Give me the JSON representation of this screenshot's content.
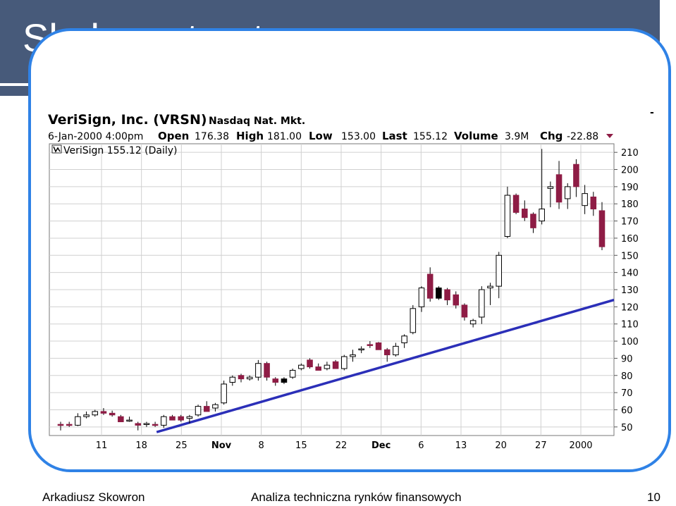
{
  "slide": {
    "title": "Skala arytmetyczna",
    "footer_author": "Arkadiusz Skowron",
    "footer_course": "Analiza techniczna rynków finansowych",
    "page_number": "10"
  },
  "ticker_header": {
    "company": "VeriSign, Inc. (VRSN)",
    "market": "Nasdaq Nat. Mkt.",
    "datetime": "6-Jan-2000 4:00pm",
    "open_label": "Open",
    "open_value": "176.38",
    "high_label": "High",
    "high_value": "181.00",
    "low_label": "Low",
    "low_value": "153.00",
    "last_label": "Last",
    "last_value": "155.12",
    "volume_label": "Volume",
    "volume_value": "3.9M",
    "chg_label": "Chg",
    "chg_value": "-22.88",
    "legend": "VeriSign 155.12 (Daily)",
    "side_mark": "-"
  },
  "colors": {
    "title_bar": "#475a7a",
    "frame": "#2f82e6",
    "down_candle": "#8e1c45",
    "up_candle": "#ffffff",
    "trendline": "#2b2fb8",
    "grid": "#d0d0d0"
  },
  "chart_data": {
    "type": "candlestick",
    "y_scale": "linear",
    "ylim": [
      45,
      215
    ],
    "y_ticks": [
      210,
      200,
      190,
      180,
      170,
      160,
      150,
      140,
      130,
      120,
      110,
      100,
      90,
      80,
      70,
      60,
      50
    ],
    "x_tick_labels": [
      "11",
      "18",
      "25",
      "Nov",
      "8",
      "15",
      "22",
      "Dec",
      "6",
      "13",
      "20",
      "27",
      "2000"
    ],
    "grid": true,
    "candles": [
      {
        "o": 51.5,
        "h": 53,
        "l": 48,
        "c": 51.5,
        "dir": "down"
      },
      {
        "o": 51.5,
        "h": 53,
        "l": 50,
        "c": 51,
        "dir": "down"
      },
      {
        "o": 51,
        "h": 58,
        "l": 50.5,
        "c": 56,
        "dir": "up"
      },
      {
        "o": 56,
        "h": 59,
        "l": 55,
        "c": 57,
        "dir": "up"
      },
      {
        "o": 57,
        "h": 60,
        "l": 56,
        "c": 59,
        "dir": "up"
      },
      {
        "o": 59,
        "h": 61,
        "l": 57,
        "c": 58,
        "dir": "down"
      },
      {
        "o": 58,
        "h": 59.5,
        "l": 56,
        "c": 57,
        "dir": "down"
      },
      {
        "o": 56,
        "h": 57,
        "l": 54,
        "c": 53,
        "dir": "down"
      },
      {
        "o": 54,
        "h": 56,
        "l": 53,
        "c": 54,
        "dir": "up"
      },
      {
        "o": 52,
        "h": 53,
        "l": 48,
        "c": 51,
        "dir": "down"
      },
      {
        "o": 51.5,
        "h": 53,
        "l": 50,
        "c": 52,
        "dir": "up"
      },
      {
        "o": 51.5,
        "h": 53,
        "l": 50,
        "c": 51,
        "dir": "down"
      },
      {
        "o": 51,
        "h": 57,
        "l": 49.5,
        "c": 56,
        "dir": "up"
      },
      {
        "o": 56,
        "h": 57,
        "l": 54,
        "c": 54,
        "dir": "down"
      },
      {
        "o": 56,
        "h": 57,
        "l": 53,
        "c": 54,
        "dir": "down"
      },
      {
        "o": 55,
        "h": 57,
        "l": 52,
        "c": 56,
        "dir": "up"
      },
      {
        "o": 57,
        "h": 63,
        "l": 56,
        "c": 62,
        "dir": "up"
      },
      {
        "o": 62,
        "h": 65,
        "l": 59,
        "c": 59,
        "dir": "down"
      },
      {
        "o": 61,
        "h": 64,
        "l": 59,
        "c": 63,
        "dir": "up"
      },
      {
        "o": 64,
        "h": 77,
        "l": 63,
        "c": 75,
        "dir": "up"
      },
      {
        "o": 76,
        "h": 80,
        "l": 74,
        "c": 79,
        "dir": "up"
      },
      {
        "o": 80,
        "h": 81,
        "l": 76,
        "c": 78,
        "dir": "down"
      },
      {
        "o": 78,
        "h": 80,
        "l": 77,
        "c": 79,
        "dir": "up"
      },
      {
        "o": 79,
        "h": 89,
        "l": 77,
        "c": 87,
        "dir": "up"
      },
      {
        "o": 87,
        "h": 88,
        "l": 77,
        "c": 79,
        "dir": "down"
      },
      {
        "o": 78,
        "h": 79,
        "l": 74,
        "c": 76,
        "dir": "down"
      },
      {
        "o": 76,
        "h": 79,
        "l": 75,
        "c": 78,
        "dir": "down",
        "dark": true
      },
      {
        "o": 79,
        "h": 84,
        "l": 78,
        "c": 83,
        "dir": "up"
      },
      {
        "o": 84,
        "h": 87,
        "l": 83,
        "c": 86,
        "dir": "up"
      },
      {
        "o": 89,
        "h": 90,
        "l": 84,
        "c": 85,
        "dir": "down"
      },
      {
        "o": 85,
        "h": 87,
        "l": 83,
        "c": 83,
        "dir": "down"
      },
      {
        "o": 84,
        "h": 88,
        "l": 83,
        "c": 86,
        "dir": "up"
      },
      {
        "o": 88,
        "h": 89,
        "l": 84,
        "c": 84,
        "dir": "down"
      },
      {
        "o": 84,
        "h": 92,
        "l": 83,
        "c": 91,
        "dir": "up"
      },
      {
        "o": 91,
        "h": 95,
        "l": 88,
        "c": 92,
        "dir": "up"
      },
      {
        "o": 95,
        "h": 97,
        "l": 93,
        "c": 95.5,
        "dir": "up"
      },
      {
        "o": 98,
        "h": 100,
        "l": 96,
        "c": 98,
        "dir": "down"
      },
      {
        "o": 99,
        "h": 99.5,
        "l": 95,
        "c": 95,
        "dir": "down"
      },
      {
        "o": 95,
        "h": 96,
        "l": 88,
        "c": 92,
        "dir": "down"
      },
      {
        "o": 92,
        "h": 99,
        "l": 91,
        "c": 97,
        "dir": "up"
      },
      {
        "o": 99,
        "h": 104,
        "l": 96,
        "c": 103,
        "dir": "up"
      },
      {
        "o": 105,
        "h": 121,
        "l": 104,
        "c": 119,
        "dir": "up"
      },
      {
        "o": 120,
        "h": 132,
        "l": 117,
        "c": 131,
        "dir": "up"
      },
      {
        "o": 125,
        "h": 143,
        "l": 123,
        "c": 139,
        "dir": "down"
      },
      {
        "o": 125,
        "h": 132,
        "l": 124,
        "c": 131,
        "dir": "down",
        "dark": true
      },
      {
        "o": 130,
        "h": 131,
        "l": 121,
        "c": 124,
        "dir": "down"
      },
      {
        "o": 127,
        "h": 129,
        "l": 119,
        "c": 121,
        "dir": "down"
      },
      {
        "o": 121,
        "h": 122,
        "l": 112,
        "c": 114,
        "dir": "down"
      },
      {
        "o": 110,
        "h": 113,
        "l": 108,
        "c": 112,
        "dir": "up"
      },
      {
        "o": 114,
        "h": 132,
        "l": 110,
        "c": 130,
        "dir": "up"
      },
      {
        "o": 131,
        "h": 134,
        "l": 121,
        "c": 132,
        "dir": "up"
      },
      {
        "o": 132,
        "h": 152,
        "l": 125,
        "c": 150,
        "dir": "up"
      },
      {
        "o": 161,
        "h": 190,
        "l": 160,
        "c": 185,
        "dir": "up"
      },
      {
        "o": 185,
        "h": 186,
        "l": 174,
        "c": 175,
        "dir": "down"
      },
      {
        "o": 177,
        "h": 182,
        "l": 170,
        "c": 172,
        "dir": "down"
      },
      {
        "o": 174,
        "h": 175,
        "l": 163,
        "c": 166,
        "dir": "down"
      },
      {
        "o": 170,
        "h": 212,
        "l": 168,
        "c": 177,
        "dir": "up"
      },
      {
        "o": 189,
        "h": 193,
        "l": 178,
        "c": 190,
        "dir": "up"
      },
      {
        "o": 197,
        "h": 205,
        "l": 177,
        "c": 181,
        "dir": "down"
      },
      {
        "o": 183,
        "h": 192,
        "l": 177,
        "c": 190,
        "dir": "up"
      },
      {
        "o": 203,
        "h": 206,
        "l": 184,
        "c": 190,
        "dir": "down"
      },
      {
        "o": 179,
        "h": 191,
        "l": 174,
        "c": 186,
        "dir": "up"
      },
      {
        "o": 184,
        "h": 187,
        "l": 173,
        "c": 177,
        "dir": "down"
      },
      {
        "o": 176,
        "h": 181,
        "l": 153,
        "c": 155,
        "dir": "down"
      }
    ],
    "trendline": {
      "x": [
        0.19,
        1.0
      ],
      "y": [
        47,
        124
      ]
    }
  }
}
